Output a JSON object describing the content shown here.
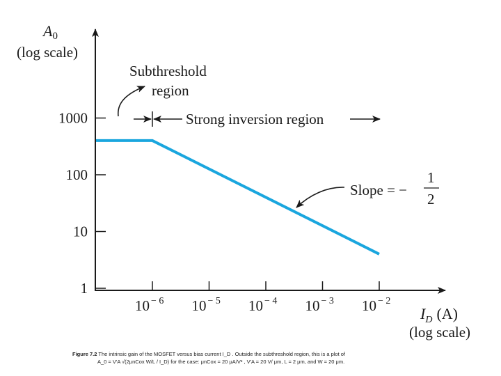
{
  "chart_data": {
    "type": "line",
    "y_axis": {
      "symbol": "A",
      "subscript": "0",
      "scale_label": "(log scale)",
      "scale": "log"
    },
    "x_axis": {
      "symbol": "I",
      "subscript": "D",
      "unit": "(A)",
      "scale_label": "(log scale)",
      "scale": "log"
    },
    "y_ticks": [
      {
        "value": 1,
        "label": "1"
      },
      {
        "value": 10,
        "label": "10"
      },
      {
        "value": 100,
        "label": "100"
      },
      {
        "value": 1000,
        "label": "1000"
      }
    ],
    "x_ticks": [
      {
        "value": 1e-06,
        "base": "10",
        "exp": "− 6"
      },
      {
        "value": 1e-05,
        "base": "10",
        "exp": "− 5"
      },
      {
        "value": 0.0001,
        "base": "10",
        "exp": "− 4"
      },
      {
        "value": 0.001,
        "base": "10",
        "exp": "− 3"
      },
      {
        "value": 0.01,
        "base": "10",
        "exp": "− 2"
      }
    ],
    "xlim": [
      1e-07,
      0.1
    ],
    "ylim": [
      0.5,
      20000
    ],
    "color": "#1aa6de",
    "series": [
      {
        "x": [
          1e-07,
          1e-06,
          0.01
        ],
        "y": [
          400,
          400,
          4
        ]
      }
    ],
    "annotations": {
      "subthreshold": [
        "Subthreshold",
        "region"
      ],
      "strong_inversion": "Strong inversion region",
      "slope_label": "Slope = −",
      "slope_num": "1",
      "slope_den": "2"
    }
  },
  "caption": {
    "fig_label": "Figure 7.2",
    "line1": " The intrinsic gain of the MOSFET versus bias current  I_D . Outside the  subthreshold region, this is a plot of",
    "line2": "A_0 = V'A √(2μnCox W/L / I_D)  for the case: μnCox = 20 μA/V² , V'A = 20 V/ μm, L = 2 μm, and W = 20 μm."
  }
}
